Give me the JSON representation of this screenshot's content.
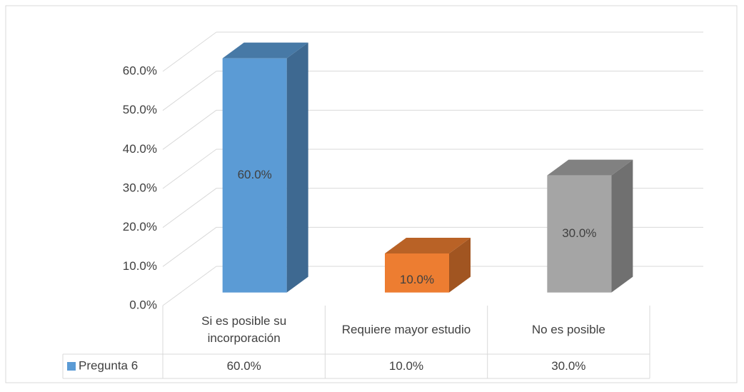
{
  "chart_data": {
    "type": "bar3d",
    "categories": [
      "Si es posible su incorporación",
      "Requiere mayor estudio",
      "No es posible"
    ],
    "series": [
      {
        "name": "Pregunta 6",
        "color": "#5b9bd5",
        "values": [
          60,
          10,
          30
        ],
        "value_labels": [
          "60.0%",
          "10.0%",
          "30.0%"
        ]
      }
    ],
    "colors": [
      "#5b9bd5",
      "#ed7d31",
      "#a5a5a5"
    ],
    "ylim": [
      0,
      60
    ],
    "yticks": [
      {
        "value": 0,
        "label": "0.0%"
      },
      {
        "value": 10,
        "label": "10.0%"
      },
      {
        "value": 20,
        "label": "20.0%"
      },
      {
        "value": 30,
        "label": "30.0%"
      },
      {
        "value": 40,
        "label": "40.0%"
      },
      {
        "value": 50,
        "label": "50.0%"
      },
      {
        "value": 60,
        "label": "60.0%"
      }
    ],
    "grid": true,
    "data_table": true
  }
}
